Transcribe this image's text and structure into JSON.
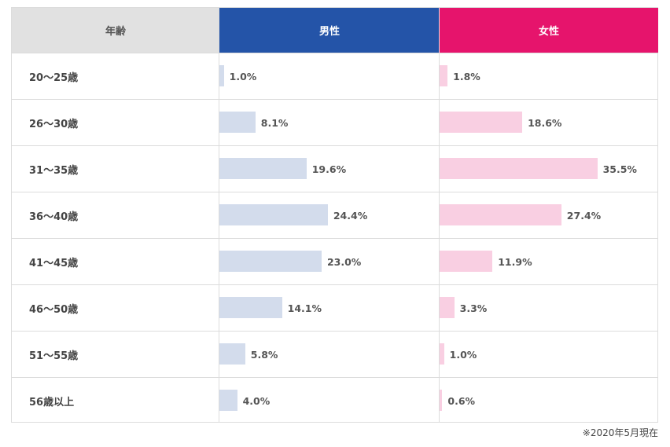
{
  "table": {
    "header": {
      "age": "年齢",
      "male": "男性",
      "female": "女性"
    },
    "colors": {
      "male_header": "#2454a8",
      "female_header": "#e6146c",
      "male_bar": "#d3dcec",
      "female_bar": "#f9cfe2"
    },
    "note": "※2020年5月現在"
  },
  "chart_data": {
    "type": "bar",
    "categories": [
      "20〜25歳",
      "26〜30歳",
      "31〜35歳",
      "36〜40歳",
      "41〜45歳",
      "46〜50歳",
      "51〜55歳",
      "56歳以上"
    ],
    "series": [
      {
        "name": "男性",
        "values": [
          1.0,
          8.1,
          19.6,
          24.4,
          23.0,
          14.1,
          5.8,
          4.0
        ],
        "labels": [
          "1.0%",
          "8.1%",
          "19.6%",
          "24.4%",
          "23.0%",
          "14.1%",
          "5.8%",
          "4.0%"
        ]
      },
      {
        "name": "女性",
        "values": [
          1.8,
          18.6,
          35.5,
          27.4,
          11.9,
          3.3,
          1.0,
          0.6
        ],
        "labels": [
          "1.8%",
          "18.6%",
          "35.5%",
          "27.4%",
          "11.9%",
          "3.3%",
          "1.0%",
          "0.6%"
        ]
      }
    ],
    "unit": "%"
  }
}
